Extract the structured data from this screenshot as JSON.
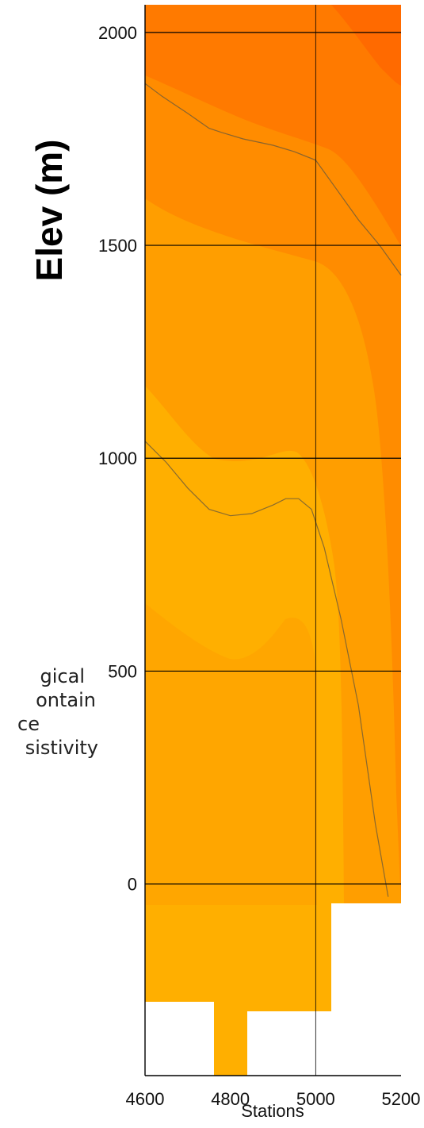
{
  "chart_data": {
    "type": "heatmap",
    "title": "",
    "xlabel": "Stations",
    "ylabel": "Elev (m)",
    "xlim": [
      4600,
      5200
    ],
    "ylim": [
      -450,
      2065
    ],
    "x_ticks": [
      4600,
      4800,
      5000,
      5200
    ],
    "y_ticks": [
      0,
      500,
      1000,
      1500,
      2000
    ],
    "grid": true,
    "colors": {
      "band1": "#FFAF00",
      "band2": "#FF9E00",
      "band3": "#FF8C00",
      "band4": "#FF7A00",
      "band5": "#FF6A00",
      "contour": "#6b5a3a",
      "grid": "#000000"
    },
    "contour_lines": [
      {
        "x": [
          4600,
          4640,
          4700,
          4750,
          4780,
          4830,
          4900,
          4950,
          5000,
          5050,
          5100,
          5150,
          5200
        ],
        "y": [
          1880,
          1850,
          1810,
          1775,
          1765,
          1750,
          1735,
          1720,
          1700,
          1630,
          1560,
          1500,
          1430
        ]
      },
      {
        "x": [
          4600,
          4650,
          4700,
          4750,
          4800,
          4850,
          4900,
          4930,
          4960,
          4990,
          5020,
          5060,
          5100,
          5140,
          5170
        ],
        "y": [
          1040,
          990,
          930,
          880,
          865,
          870,
          890,
          905,
          905,
          880,
          790,
          620,
          420,
          140,
          -30
        ]
      }
    ],
    "no_data_mask": [
      {
        "x": [
          4600,
          4765
        ],
        "y_top": -320
      },
      {
        "x": [
          4840,
          5040
        ],
        "y_top": -320
      },
      {
        "x": [
          5040,
          5200
        ],
        "y_top": -55
      }
    ],
    "visible_text_fragments": [
      "gical",
      "ontain",
      "ce",
      "sistivity"
    ]
  }
}
